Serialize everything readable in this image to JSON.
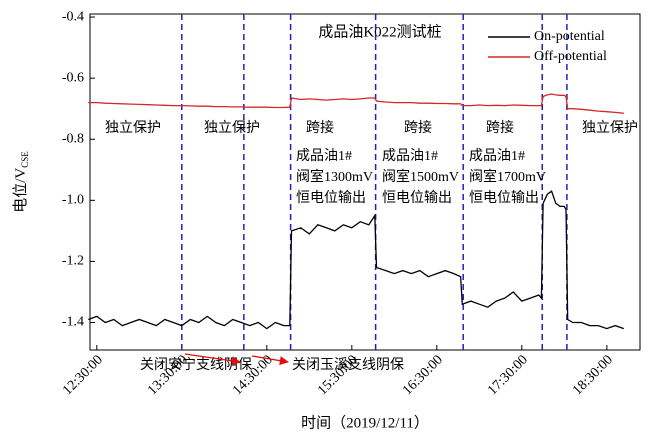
{
  "chart_data": {
    "type": "line",
    "title": "成品油K022测试桩",
    "x_label": "时间（2019/12/11）",
    "y_label": "电位/V",
    "y_label_sub": "CSE",
    "x": [
      12.4,
      12.5,
      12.6,
      12.7,
      12.8,
      12.9,
      13.0,
      13.1,
      13.2,
      13.3,
      13.4,
      13.5,
      13.6,
      13.7,
      13.8,
      13.9,
      14.0,
      14.1,
      14.2,
      14.3,
      14.4,
      14.5,
      14.6,
      14.7,
      14.77,
      14.79,
      14.9,
      15.0,
      15.1,
      15.2,
      15.3,
      15.4,
      15.5,
      15.6,
      15.7,
      15.77,
      15.79,
      15.9,
      16.0,
      16.1,
      16.2,
      16.3,
      16.4,
      16.5,
      16.6,
      16.7,
      16.78,
      16.8,
      16.9,
      17.0,
      17.1,
      17.2,
      17.3,
      17.4,
      17.5,
      17.6,
      17.7,
      17.73,
      17.75,
      17.8,
      17.85,
      17.9,
      17.95,
      18.0,
      18.02,
      18.04,
      18.1,
      18.2,
      18.3,
      18.4,
      18.5,
      18.6,
      18.7
    ],
    "series": [
      {
        "name": "On-potential",
        "color": "#000000",
        "values": [
          -1.39,
          -1.38,
          -1.4,
          -1.39,
          -1.41,
          -1.4,
          -1.39,
          -1.4,
          -1.41,
          -1.39,
          -1.4,
          -1.41,
          -1.39,
          -1.4,
          -1.38,
          -1.4,
          -1.41,
          -1.39,
          -1.4,
          -1.41,
          -1.4,
          -1.42,
          -1.4,
          -1.41,
          -1.41,
          -1.1,
          -1.09,
          -1.11,
          -1.08,
          -1.09,
          -1.1,
          -1.08,
          -1.09,
          -1.07,
          -1.08,
          -1.05,
          -1.22,
          -1.23,
          -1.24,
          -1.23,
          -1.24,
          -1.23,
          -1.25,
          -1.24,
          -1.23,
          -1.24,
          -1.25,
          -1.34,
          -1.33,
          -1.34,
          -1.35,
          -1.33,
          -1.32,
          -1.3,
          -1.33,
          -1.32,
          -1.31,
          -1.32,
          -1.01,
          -0.98,
          -0.97,
          -1.01,
          -1.02,
          -1.02,
          -1.03,
          -1.39,
          -1.4,
          -1.4,
          -1.41,
          -1.41,
          -1.42,
          -1.41,
          -1.42
        ]
      },
      {
        "name": "Off-potential",
        "color": "#d62728",
        "values": [
          -0.68,
          -0.68,
          -0.682,
          -0.683,
          -0.684,
          -0.685,
          -0.686,
          -0.687,
          -0.688,
          -0.689,
          -0.69,
          -0.69,
          -0.691,
          -0.692,
          -0.692,
          -0.693,
          -0.693,
          -0.694,
          -0.694,
          -0.695,
          -0.695,
          -0.695,
          -0.696,
          -0.696,
          -0.695,
          -0.665,
          -0.67,
          -0.668,
          -0.67,
          -0.672,
          -0.67,
          -0.668,
          -0.67,
          -0.668,
          -0.665,
          -0.665,
          -0.675,
          -0.678,
          -0.68,
          -0.68,
          -0.68,
          -0.682,
          -0.682,
          -0.683,
          -0.683,
          -0.684,
          -0.684,
          -0.69,
          -0.69,
          -0.688,
          -0.69,
          -0.689,
          -0.69,
          -0.688,
          -0.689,
          -0.69,
          -0.69,
          -0.69,
          -0.66,
          -0.655,
          -0.652,
          -0.655,
          -0.656,
          -0.656,
          -0.66,
          -0.7,
          -0.7,
          -0.702,
          -0.705,
          -0.708,
          -0.71,
          -0.712,
          -0.715
        ]
      }
    ],
    "xlim": [
      12.42,
      18.89
    ],
    "ylim": [
      -1.49,
      -0.39
    ],
    "xticks": [
      {
        "value": 12.5,
        "label": "12:30:00"
      },
      {
        "value": 13.5,
        "label": "13:30:00"
      },
      {
        "value": 14.5,
        "label": "14:30:00"
      },
      {
        "value": 15.5,
        "label": "15:30:00"
      },
      {
        "value": 16.5,
        "label": "16:30:00"
      },
      {
        "value": 17.5,
        "label": "17:30:00"
      },
      {
        "value": 18.5,
        "label": "18:30:00"
      }
    ],
    "yticks": [
      -0.4,
      -0.6,
      -0.8,
      {
        "value": -1,
        "label": "-1.0"
      },
      -1.2,
      -1.4
    ],
    "event_lines_x": [
      13.5,
      14.23,
      14.78,
      15.78,
      16.81,
      17.74,
      18.03
    ],
    "event_line_color": "#1f1fbf",
    "legend": "top-right",
    "region_labels": [
      "独立保护",
      "独立保护",
      "跨接",
      "跨接",
      "跨接",
      "独立保护"
    ],
    "boxes": [
      [
        "成品油1#",
        "阀室1300mV",
        "恒电位输出"
      ],
      [
        "成品油1#",
        "阀室1500mV",
        "恒电位输出"
      ],
      [
        "成品油1#",
        "阀室1700mV",
        "恒电位输出"
      ]
    ],
    "bottom_notes": [
      "关闭安宁支线阴保",
      "关闭玉溪支线阴保"
    ]
  }
}
